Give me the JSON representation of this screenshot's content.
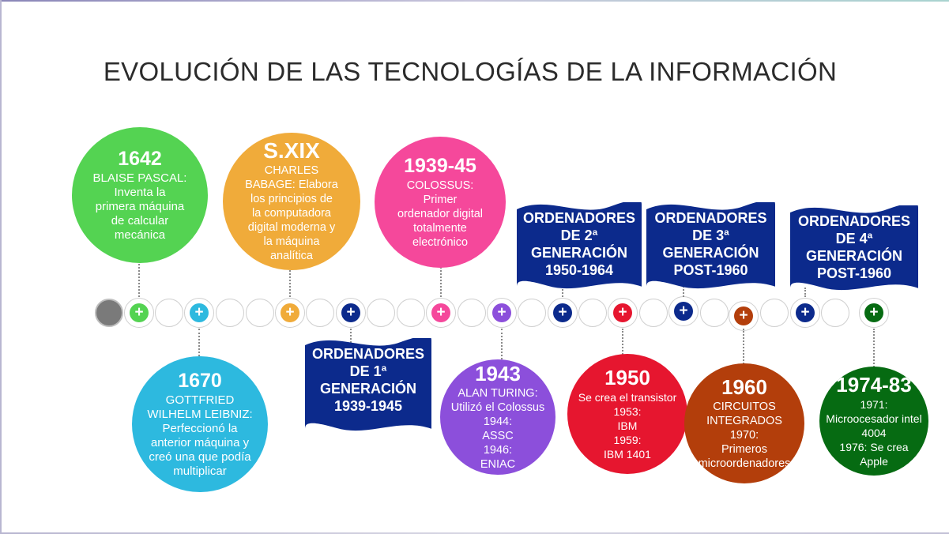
{
  "title": "EVOLUCIÓN DE LAS TECNOLOGÍAS DE LA INFORMACIÓN",
  "plus_glyph": "+",
  "colors": {
    "green": "#54d352",
    "cyan": "#2db9df",
    "orange": "#f0ab3a",
    "navy": "#0c2a8c",
    "pink": "#f5489b",
    "purple": "#8c4fdb",
    "red": "#e6162f",
    "brown": "#b33e0b",
    "darkgreen": "#066b12"
  },
  "events": [
    {
      "year": "1642",
      "text": "BLAISE PASCAL:\nInventa la\nprimera máquina\nde calcular\nmecánica",
      "color": "#54d352"
    },
    {
      "year": "1670",
      "text": "GOTTFRIED\nWILHELM LEIBNIZ:\nPerfeccionó la\nanterior máquina y\ncreó una que podía\nmultiplicar",
      "color": "#2db9df"
    },
    {
      "year": "S.XIX",
      "text": "CHARLES\nBABAGE: Elabora\nlos principios de\nla computadora\ndigital moderna y\nla máquina\nanalítica",
      "color": "#f0ab3a"
    },
    {
      "year": "1939-45",
      "text": "COLOSSUS:\nPrimer\nordenador digital\ntotalmente\nelectrónico",
      "color": "#f5489b"
    },
    {
      "year": "1943",
      "text": "ALAN TURING:\nUtilizó el Colossus\n1944:\nASSC\n1946:\nENIAC",
      "color": "#8c4fdb"
    },
    {
      "year": "1950",
      "text": "Se crea el transistor\n1953:\nIBM\n1959:\nIBM 1401",
      "color": "#e6162f"
    },
    {
      "year": "1960",
      "text": "CIRCUITOS\nINTEGRADOS\n1970:\nPrimeros\nmicroordenadores",
      "color": "#b33e0b"
    },
    {
      "year": "1974-83",
      "text": "1971:\nMicroocesador intel\n4004\n1976: Se crea Apple",
      "color": "#066b12"
    }
  ],
  "generations": [
    {
      "text": "ORDENADORES\nDE 1ª\nGENERACIÓN\n1939-1945"
    },
    {
      "text": "ORDENADORES\nDE 2ª\nGENERACIÓN\n1950-1964"
    },
    {
      "text": "ORDENADORES\nDE 3ª\nGENERACIÓN\nPOST-1960"
    },
    {
      "text": "ORDENADORES\nDE 4ª\nGENERACIÓN\nPOST-1960"
    }
  ]
}
